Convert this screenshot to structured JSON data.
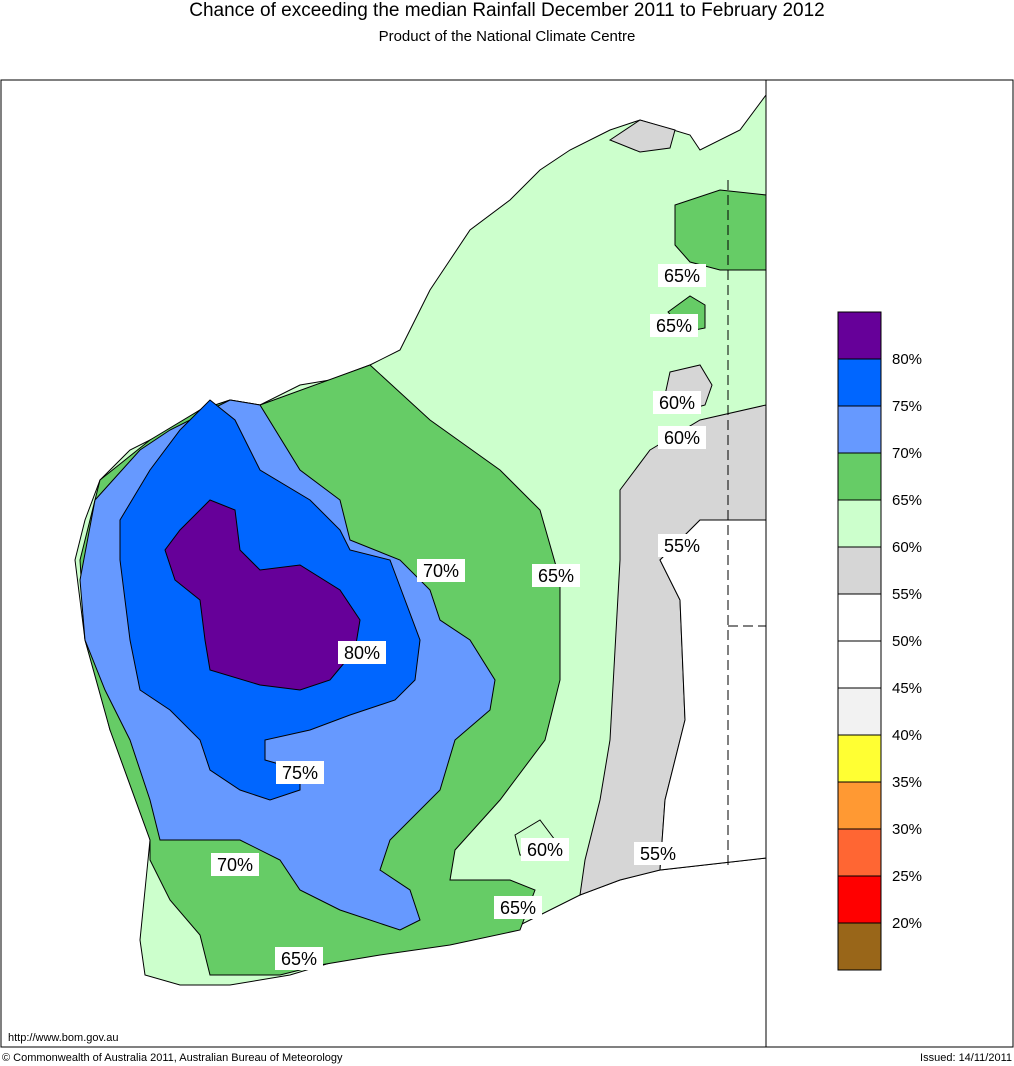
{
  "title": "Chance of exceeding the median Rainfall December 2011 to February 2012",
  "subtitle": "Product of the National Climate Centre",
  "url": "http://www.bom.gov.au",
  "copyright": "© Commonwealth of Australia 2011, Australian Bureau of Meteorology",
  "issued": "Issued: 14/11/2011",
  "map_labels": [
    "65%",
    "65%",
    "60%",
    "60%",
    "55%",
    "70%",
    "65%",
    "80%",
    "75%",
    "60%",
    "55%",
    "70%",
    "65%",
    "65%"
  ],
  "legend": {
    "colors": [
      "#660099",
      "#0066ff",
      "#6699ff",
      "#66cc66",
      "#ccffcc",
      "#d6d6d6",
      "#ffffff",
      "#ffffff",
      "#f2f2f2",
      "#ffff33",
      "#ff9933",
      "#ff6633",
      "#ff0000",
      "#996619"
    ],
    "labels": [
      "80%",
      "75%",
      "70%",
      "65%",
      "60%",
      "55%",
      "50%",
      "45%",
      "40%",
      "35%",
      "30%",
      "25%",
      "20%"
    ]
  }
}
